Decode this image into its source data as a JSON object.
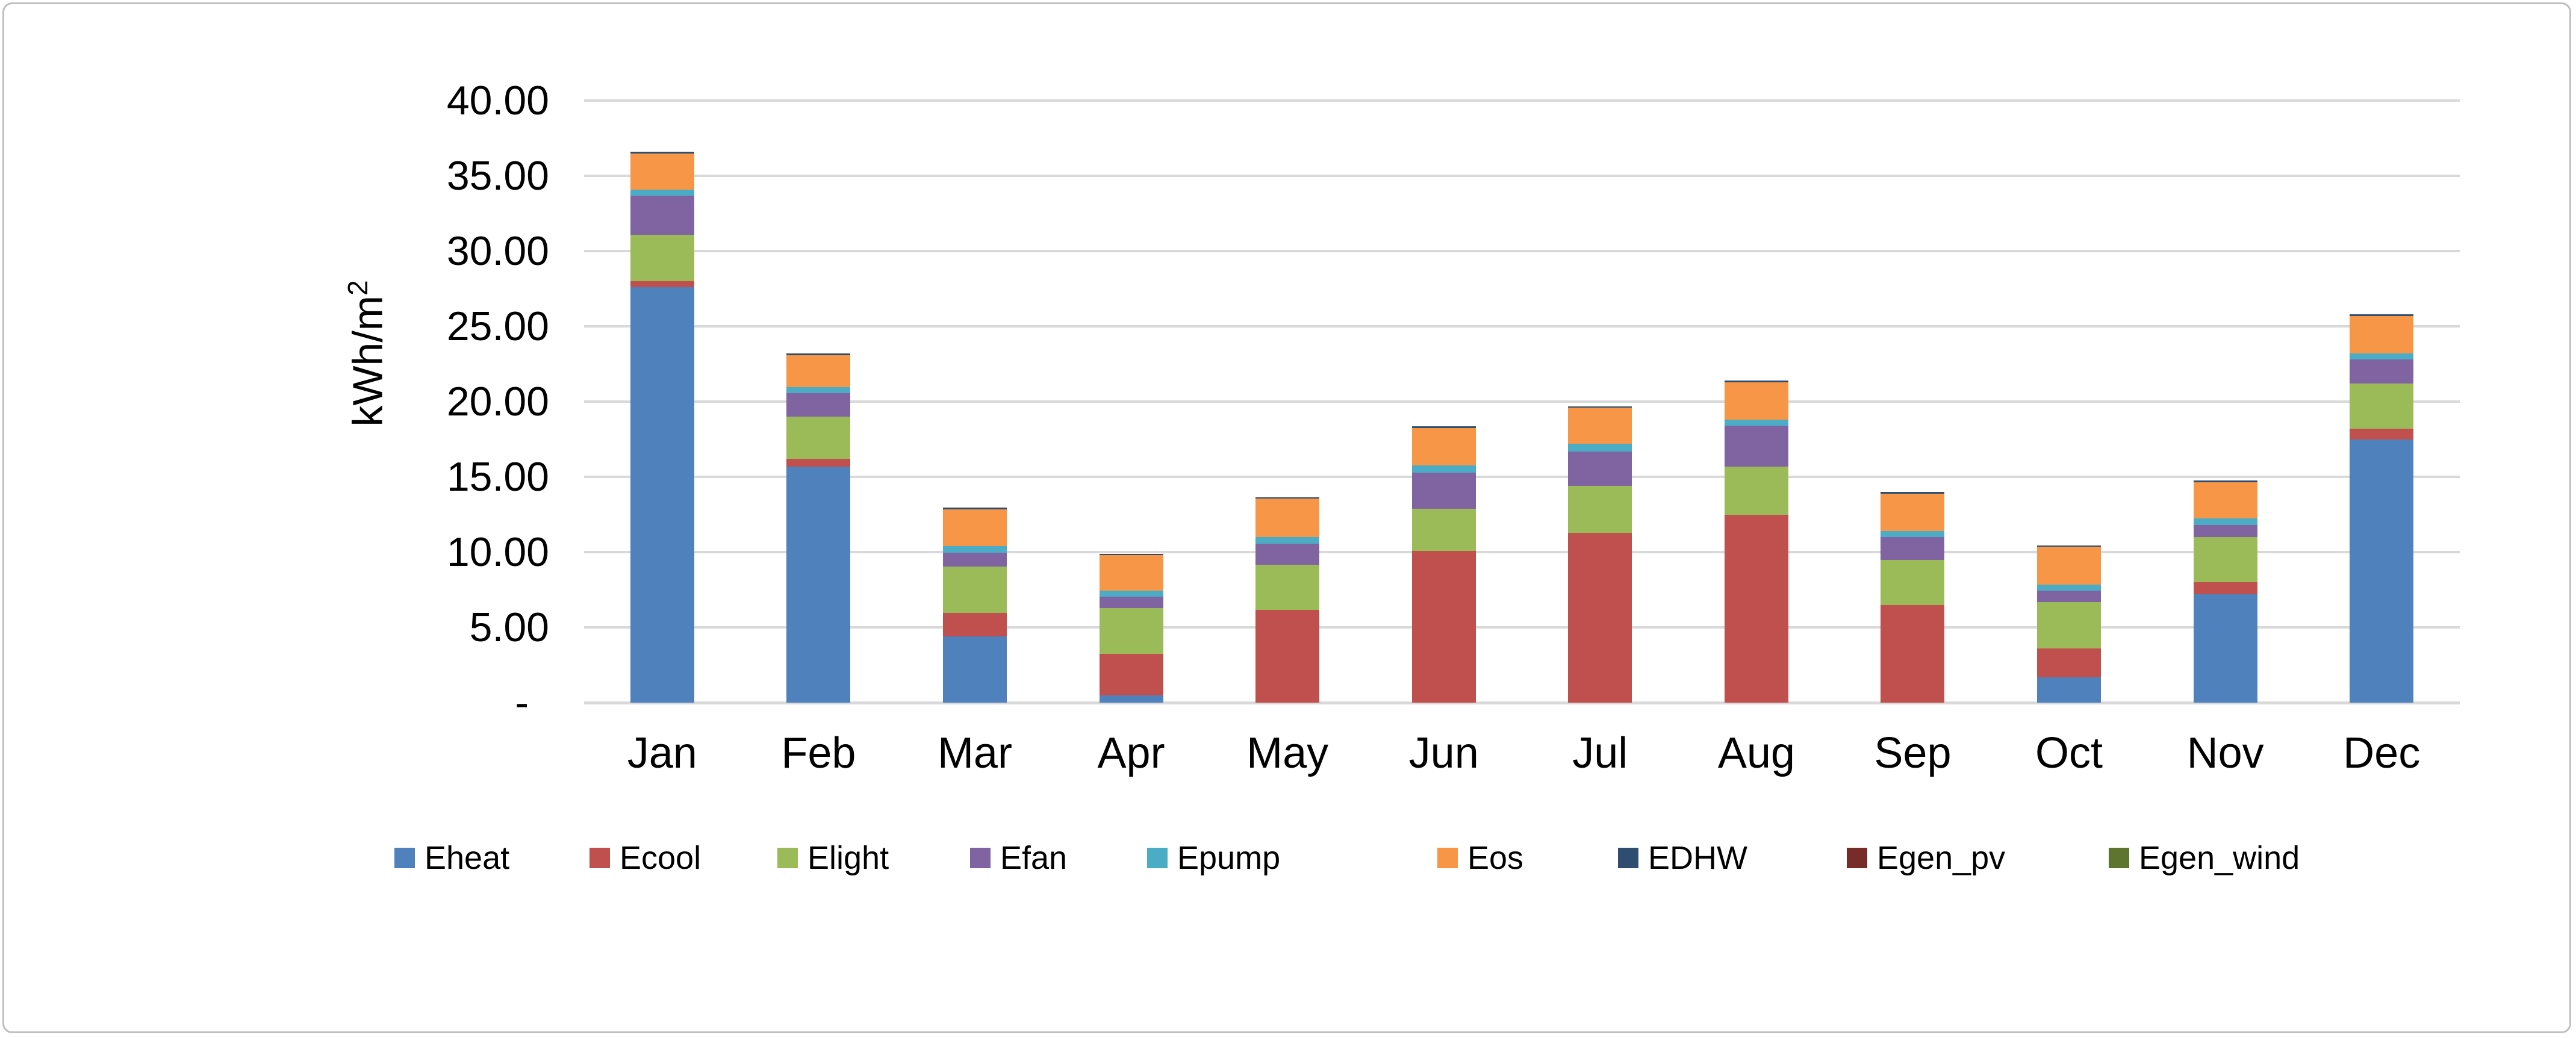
{
  "chart_data": {
    "type": "bar",
    "stacked": true,
    "title": "",
    "ylabel_text": "kWh/m",
    "ylabel_sup": "2",
    "xlabel": "",
    "ylim": [
      0,
      40
    ],
    "y_tick_step": 5,
    "grid": true,
    "legend_position": "bottom",
    "y_ticks": [
      "40.00",
      "35.00",
      "30.00",
      "25.00",
      "20.00",
      "15.00",
      "10.00",
      "5.00",
      "-"
    ],
    "categories": [
      "Jan",
      "Feb",
      "Mar",
      "Apr",
      "May",
      "Jun",
      "Jul",
      "Aug",
      "Sep",
      "Oct",
      "Nov",
      "Dec"
    ],
    "series": [
      {
        "name": "Eheat",
        "color": "#4F81BD",
        "values": [
          27.6,
          15.7,
          4.4,
          0.5,
          0,
          0,
          0,
          0,
          0,
          1.7,
          7.2,
          17.5
        ]
      },
      {
        "name": "Ecool",
        "color": "#C0504D",
        "values": [
          0.4,
          0.5,
          1.55,
          2.75,
          6.15,
          10.1,
          11.3,
          12.5,
          6.5,
          1.9,
          0.8,
          0.7
        ]
      },
      {
        "name": "Elight",
        "color": "#9BBB59",
        "values": [
          3.1,
          2.8,
          3.1,
          3.05,
          3.0,
          2.8,
          3.1,
          3.2,
          3.0,
          3.1,
          3.0,
          3.0
        ]
      },
      {
        "name": "Efan",
        "color": "#8064A2",
        "values": [
          2.6,
          1.55,
          0.9,
          0.75,
          1.4,
          2.4,
          2.3,
          2.7,
          1.5,
          0.75,
          0.8,
          1.6
        ]
      },
      {
        "name": "Epump",
        "color": "#4BACC6",
        "values": [
          0.4,
          0.4,
          0.45,
          0.4,
          0.45,
          0.45,
          0.5,
          0.4,
          0.4,
          0.4,
          0.45,
          0.4
        ]
      },
      {
        "name": "Eos",
        "color": "#F79646",
        "values": [
          2.4,
          2.15,
          2.45,
          2.35,
          2.55,
          2.5,
          2.4,
          2.5,
          2.5,
          2.5,
          2.4,
          2.5
        ]
      },
      {
        "name": "EDHW",
        "color": "#2E4D71",
        "values": [
          0.1,
          0.1,
          0.1,
          0.1,
          0.1,
          0.1,
          0.1,
          0.1,
          0.1,
          0.1,
          0.1,
          0.1
        ]
      },
      {
        "name": "Egen_pv",
        "color": "#772C2A",
        "values": [
          0,
          0,
          0,
          0,
          0,
          0,
          0,
          0,
          0,
          0,
          0,
          0
        ]
      },
      {
        "name": "Egen_wind",
        "color": "#5E7530",
        "values": [
          0,
          0,
          0,
          0,
          0,
          0,
          0,
          0,
          0,
          0,
          0,
          0
        ]
      }
    ],
    "totals": [
      36.6,
      23.2,
      12.95,
      9.9,
      13.65,
      18.35,
      19.7,
      21.4,
      14.0,
      10.45,
      14.75,
      25.8
    ]
  },
  "colors": {
    "gridline": "#D9D9D9",
    "frame_border": "#BFBFBF",
    "text": "#000000"
  }
}
